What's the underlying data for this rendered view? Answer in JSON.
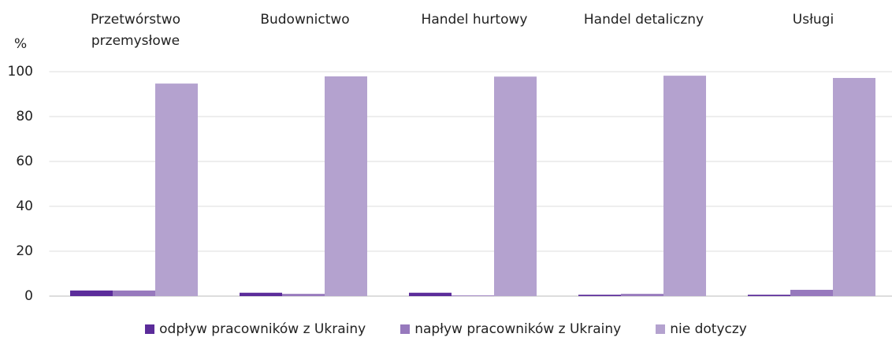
{
  "chart_data": {
    "type": "bar",
    "y_label": "%",
    "categories": [
      "Przetwórstwo przemysłowe",
      "Budownictwo",
      "Handel hurtowy",
      "Handel detaliczny",
      "Usługi"
    ],
    "series": [
      {
        "name": "odpływ pracowników z Ukrainy",
        "color": "#5b2c9a",
        "values": [
          2.5,
          1.5,
          1.5,
          0.6,
          0.6
        ]
      },
      {
        "name": "napływ pracowników z Ukrainy",
        "color": "#9779bd",
        "values": [
          2.5,
          1.0,
          0.3,
          1.0,
          2.8
        ]
      },
      {
        "name": "nie dotyczy",
        "color": "#b4a2cf",
        "values": [
          94.7,
          97.9,
          97.8,
          98.2,
          97.2
        ]
      }
    ],
    "ylim": [
      0,
      100
    ],
    "yticks": [
      0,
      20,
      40,
      60,
      80,
      100
    ],
    "grid": true,
    "legend": "bottom"
  }
}
